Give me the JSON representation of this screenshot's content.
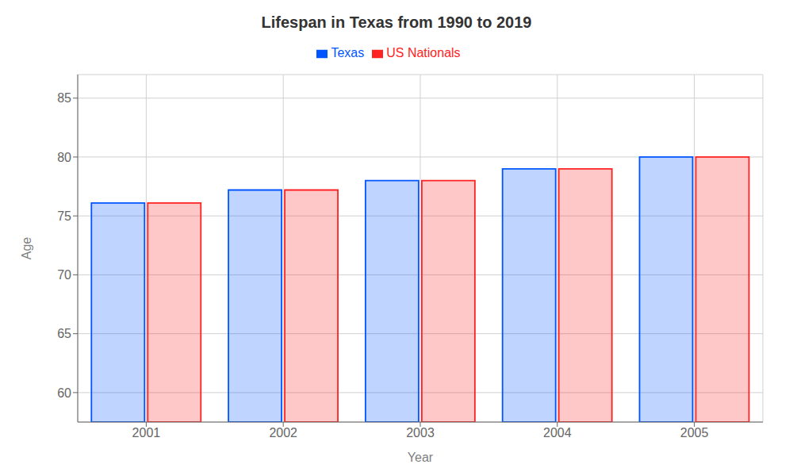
{
  "chart_data": {
    "type": "bar",
    "title": "Lifespan in Texas from 1990 to 2019",
    "xlabel": "Year",
    "ylabel": "Age",
    "categories": [
      "2001",
      "2002",
      "2003",
      "2004",
      "2005"
    ],
    "series": [
      {
        "name": "Texas",
        "color": "#0055ff",
        "values": [
          76.1,
          77.2,
          78.0,
          79.0,
          80.0
        ]
      },
      {
        "name": "US Nationals",
        "color": "#ff2222",
        "values": [
          76.1,
          77.2,
          78.0,
          79.0,
          80.0
        ]
      }
    ],
    "ylim": [
      57.5,
      87
    ],
    "yticks": [
      60,
      65,
      70,
      75,
      80,
      85
    ],
    "grid": true,
    "legend": "top"
  }
}
